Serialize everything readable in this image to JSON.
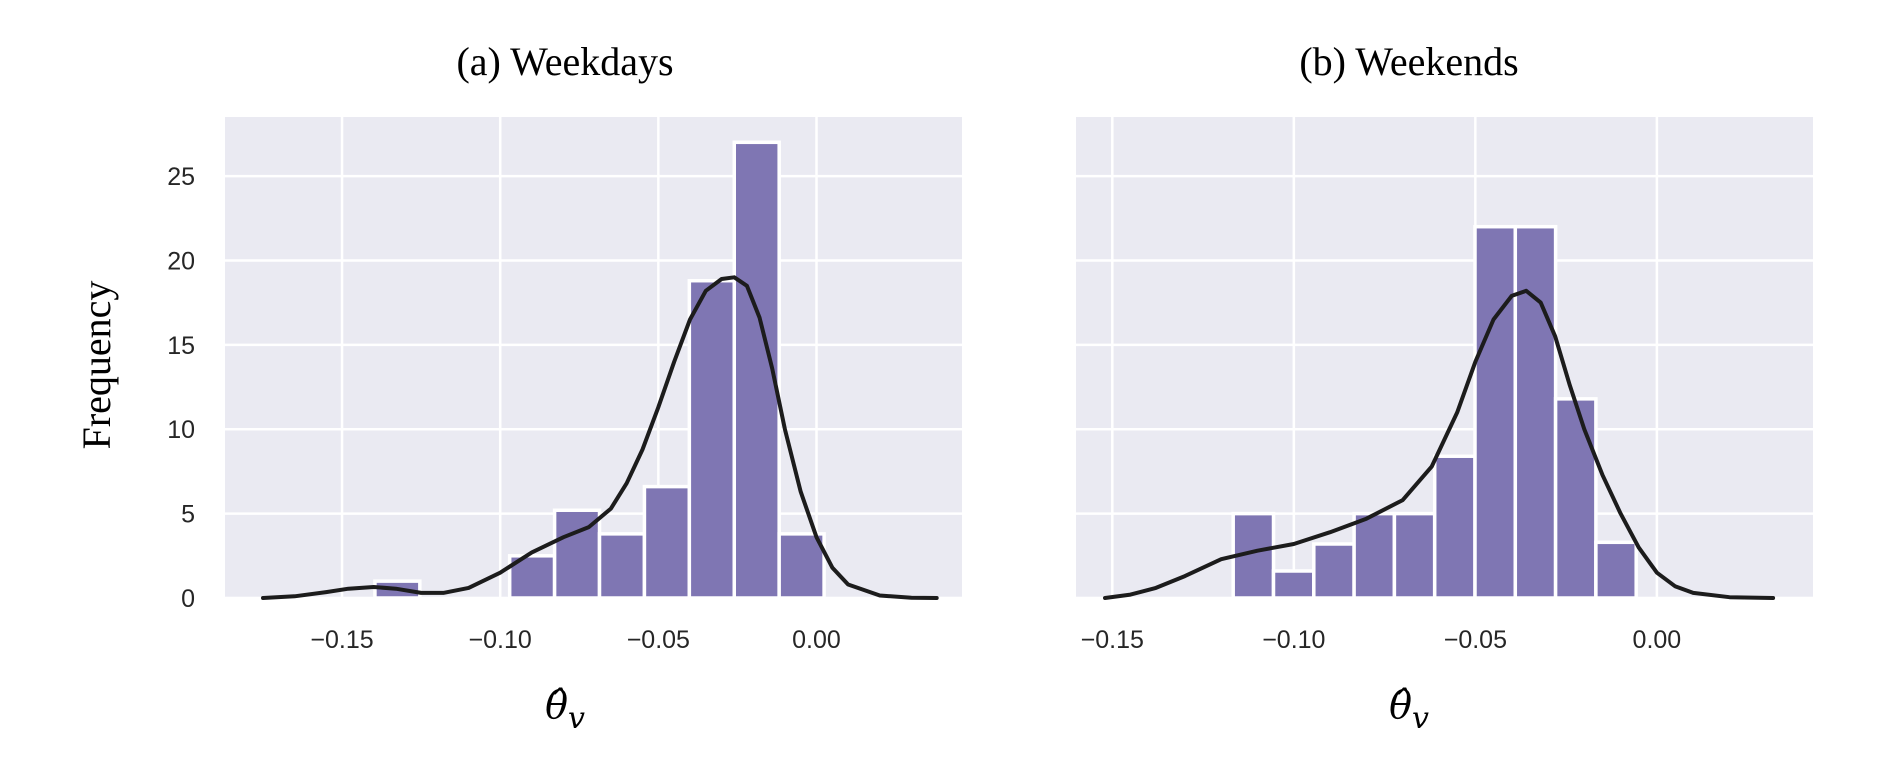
{
  "figure": {
    "ylabel": "Frequency",
    "colors": {
      "bar": "#7f76b3",
      "kde": "#1c1c1c",
      "panel_bg": "#eaeaf2",
      "grid": "#ffffff"
    }
  },
  "chart_data": [
    {
      "type": "bar",
      "title": "(a) Weekdays",
      "xlabel": "θ̂v",
      "xlabel_base": "θ̂",
      "xlabel_sub": "v",
      "ylabel": "Frequency",
      "xlim": [
        -0.187,
        0.046
      ],
      "ylim": [
        0,
        28.5
      ],
      "xticks": [
        -0.15,
        -0.1,
        -0.05,
        0.0
      ],
      "xtick_labels": [
        "−0.15",
        "−0.10",
        "−0.05",
        "0.00"
      ],
      "yticks": [
        0,
        5,
        10,
        15,
        20,
        25
      ],
      "ytick_labels": [
        "0",
        "5",
        "10",
        "15",
        "20",
        "25"
      ],
      "bin_width": 0.0142,
      "bins": [
        {
          "start": -0.1396,
          "count": 1
        },
        {
          "start": -0.097,
          "count": 2.5
        },
        {
          "start": -0.0828,
          "count": 5.2
        },
        {
          "start": -0.0686,
          "count": 3.8
        },
        {
          "start": -0.0544,
          "count": 6.6
        },
        {
          "start": -0.0402,
          "count": 18.8
        },
        {
          "start": -0.026,
          "count": 27
        },
        {
          "start": -0.0118,
          "count": 3.8
        }
      ],
      "kde": {
        "x": [
          -0.175,
          -0.165,
          -0.155,
          -0.148,
          -0.14,
          -0.133,
          -0.125,
          -0.118,
          -0.11,
          -0.1,
          -0.09,
          -0.08,
          -0.072,
          -0.065,
          -0.06,
          -0.055,
          -0.05,
          -0.045,
          -0.04,
          -0.035,
          -0.03,
          -0.026,
          -0.022,
          -0.018,
          -0.014,
          -0.01,
          -0.005,
          0.0,
          0.005,
          0.01,
          0.02,
          0.03,
          0.038
        ],
        "y": [
          0.0,
          0.1,
          0.35,
          0.55,
          0.65,
          0.55,
          0.3,
          0.3,
          0.6,
          1.5,
          2.7,
          3.6,
          4.2,
          5.3,
          6.8,
          8.8,
          11.3,
          14.0,
          16.5,
          18.2,
          18.9,
          19.0,
          18.5,
          16.6,
          13.6,
          10.0,
          6.3,
          3.6,
          1.8,
          0.8,
          0.15,
          0.02,
          0.0
        ]
      }
    },
    {
      "type": "bar",
      "title": "(b) Weekends",
      "xlabel": "θ̂v",
      "xlabel_base": "θ̂",
      "xlabel_sub": "v",
      "xlim": [
        -0.16,
        0.043
      ],
      "ylim": [
        0,
        28.5
      ],
      "xticks": [
        -0.15,
        -0.1,
        -0.05,
        0.0
      ],
      "xtick_labels": [
        "−0.15",
        "−0.10",
        "−0.05",
        "0.00"
      ],
      "yticks": [
        0,
        5,
        10,
        15,
        20,
        25
      ],
      "bin_width": 0.0111,
      "bins": [
        {
          "start": -0.1167,
          "count": 5
        },
        {
          "start": -0.1056,
          "count": 1.6
        },
        {
          "start": -0.0945,
          "count": 3.2
        },
        {
          "start": -0.0834,
          "count": 5
        },
        {
          "start": -0.0723,
          "count": 5
        },
        {
          "start": -0.0612,
          "count": 8.4
        },
        {
          "start": -0.0501,
          "count": 22
        },
        {
          "start": -0.039,
          "count": 22
        },
        {
          "start": -0.0279,
          "count": 11.8
        },
        {
          "start": -0.0168,
          "count": 3.3
        }
      ],
      "kde": {
        "x": [
          -0.152,
          -0.145,
          -0.138,
          -0.13,
          -0.12,
          -0.11,
          -0.1,
          -0.09,
          -0.08,
          -0.07,
          -0.062,
          -0.055,
          -0.05,
          -0.045,
          -0.04,
          -0.036,
          -0.032,
          -0.028,
          -0.024,
          -0.02,
          -0.015,
          -0.01,
          -0.005,
          0.0,
          0.005,
          0.01,
          0.02,
          0.032
        ],
        "y": [
          0.0,
          0.2,
          0.6,
          1.3,
          2.3,
          2.8,
          3.2,
          3.9,
          4.7,
          5.8,
          7.8,
          11.0,
          14.0,
          16.5,
          17.9,
          18.2,
          17.5,
          15.5,
          12.6,
          10.0,
          7.3,
          5.0,
          3.0,
          1.5,
          0.7,
          0.3,
          0.05,
          0.0
        ]
      }
    }
  ]
}
